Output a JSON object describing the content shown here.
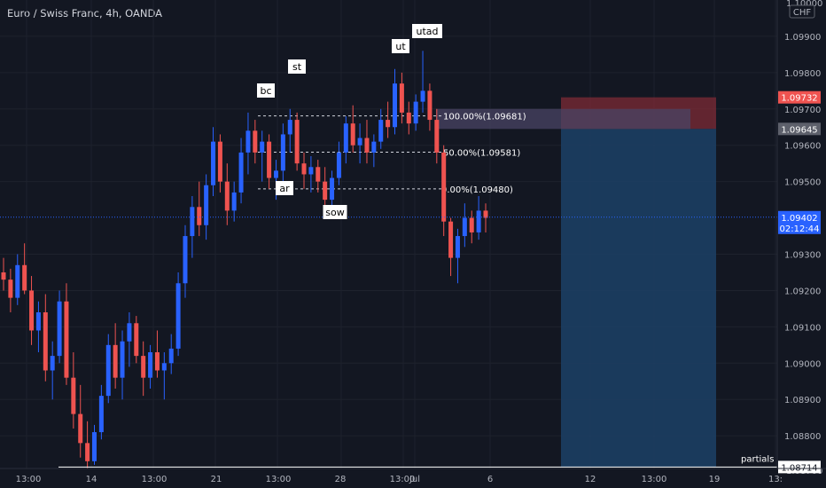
{
  "header": {
    "title": "Euro / Swiss Franc, 4h, OANDA"
  },
  "colors": {
    "background": "#131722",
    "grid": "#1e222d",
    "up": "#2962ff",
    "down": "#ef5350",
    "stop_zone": "#7d2b36",
    "target_zone": "#1c3e63",
    "entry_zone": "#4a4464"
  },
  "chart_data": {
    "type": "candlestick",
    "symbol": "Euro / Swiss Franc",
    "timeframe": "4h",
    "broker": "OANDA",
    "currency": "CHF",
    "ylim": [
      1.0871,
      1.1
    ],
    "y_ticks": [
      1.099,
      1.098,
      1.097,
      1.096,
      1.095,
      1.093,
      1.092,
      1.091,
      1.09,
      1.089,
      1.088
    ],
    "y_tick_labels": [
      "1.09900",
      "1.09800",
      "1.09700",
      "1.09600",
      "1.09500",
      "1.09300",
      "1.09200",
      "1.09100",
      "1.09000",
      "1.08900",
      "1.08800"
    ],
    "y_partial_labels": [
      "1.10000",
      "1.08700"
    ],
    "x_ticks": [
      "13:00",
      "14",
      "13:00",
      "21",
      "13:00",
      "28",
      "13:00",
      "Jul",
      "6",
      "12",
      "13:00",
      "19",
      "13:"
    ],
    "current_price": {
      "value": 1.09402,
      "label": "1.09402",
      "countdown": "02:12:44"
    },
    "price_labels": [
      {
        "label": "1.09732",
        "value": 1.09732,
        "color": "#ef5350"
      },
      {
        "label": "1.09645",
        "value": 1.09645,
        "color": "#5d606b"
      },
      {
        "label": "1.08714",
        "value": 1.08714,
        "color": "#ffffff"
      }
    ],
    "fibonacci": [
      {
        "label": "100.00%(1.09681)",
        "value": 1.09681
      },
      {
        "label": "50.00%(1.09581)",
        "value": 1.09581
      },
      {
        "label": "0.00%(1.09480)",
        "value": 1.0948
      }
    ],
    "annotations": [
      "bc",
      "st",
      "ar",
      "sow",
      "ut",
      "utad"
    ],
    "horizontal_line": {
      "label": "partials",
      "value": 1.08714
    },
    "position": {
      "entry": 1.09645,
      "stop": 1.09732,
      "target": 1.08714
    },
    "candles": [
      [
        1.0925,
        1.0929,
        1.092,
        1.0923
      ],
      [
        1.0923,
        1.0926,
        1.0914,
        1.0918
      ],
      [
        1.0918,
        1.093,
        1.0916,
        1.0927
      ],
      [
        1.0927,
        1.0933,
        1.0919,
        1.092
      ],
      [
        1.092,
        1.0924,
        1.0905,
        1.0909
      ],
      [
        1.0909,
        1.0917,
        1.0903,
        1.0914
      ],
      [
        1.0914,
        1.0919,
        1.0895,
        1.0898
      ],
      [
        1.0898,
        1.0906,
        1.089,
        1.0902
      ],
      [
        1.0902,
        1.092,
        1.09,
        1.0917
      ],
      [
        1.0917,
        1.0922,
        1.0894,
        1.0896
      ],
      [
        1.0896,
        1.0903,
        1.0882,
        1.0886
      ],
      [
        1.0886,
        1.0894,
        1.0874,
        1.0878
      ],
      [
        1.0878,
        1.0884,
        1.0871,
        1.0873
      ],
      [
        1.0873,
        1.0883,
        1.0872,
        1.0881
      ],
      [
        1.0881,
        1.0894,
        1.0879,
        1.0891
      ],
      [
        1.0891,
        1.0908,
        1.0889,
        1.0905
      ],
      [
        1.0905,
        1.0911,
        1.0893,
        1.0896
      ],
      [
        1.0896,
        1.0909,
        1.089,
        1.0906
      ],
      [
        1.0906,
        1.0914,
        1.0899,
        1.0911
      ],
      [
        1.0911,
        1.0913,
        1.09,
        1.0902
      ],
      [
        1.0902,
        1.0906,
        1.0891,
        1.0896
      ],
      [
        1.0896,
        1.0905,
        1.0893,
        1.0903
      ],
      [
        1.0903,
        1.0909,
        1.0896,
        1.0898
      ],
      [
        1.0898,
        1.0903,
        1.089,
        1.09
      ],
      [
        1.09,
        1.0908,
        1.0897,
        1.0904
      ],
      [
        1.0904,
        1.0925,
        1.0902,
        1.0922
      ],
      [
        1.0922,
        1.0938,
        1.0918,
        1.0935
      ],
      [
        1.0935,
        1.0946,
        1.0929,
        1.0943
      ],
      [
        1.0943,
        1.095,
        1.0935,
        1.0938
      ],
      [
        1.0938,
        1.0952,
        1.0934,
        1.0949
      ],
      [
        1.0949,
        1.0965,
        1.0946,
        1.0961
      ],
      [
        1.0961,
        1.0963,
        1.0947,
        1.095
      ],
      [
        1.095,
        1.0955,
        1.0938,
        1.0942
      ],
      [
        1.0942,
        1.095,
        1.0939,
        1.0947
      ],
      [
        1.0947,
        1.0962,
        1.0944,
        1.0958
      ],
      [
        1.0958,
        1.0969,
        1.0952,
        1.0964
      ],
      [
        1.0964,
        1.0967,
        1.0955,
        1.0958
      ],
      [
        1.0958,
        1.0964,
        1.095,
        1.0961
      ],
      [
        1.0961,
        1.0963,
        1.0948,
        1.0951
      ],
      [
        1.0951,
        1.0956,
        1.0945,
        1.0953
      ],
      [
        1.0953,
        1.0966,
        1.095,
        1.0963
      ],
      [
        1.0963,
        1.097,
        1.0958,
        1.0967
      ],
      [
        1.0967,
        1.0969,
        1.0953,
        1.0955
      ],
      [
        1.0955,
        1.0958,
        1.0948,
        1.0952
      ],
      [
        1.0952,
        1.0957,
        1.0947,
        1.0954
      ],
      [
        1.0954,
        1.0956,
        1.0947,
        1.095
      ],
      [
        1.095,
        1.0954,
        1.0942,
        1.0945
      ],
      [
        1.0945,
        1.0953,
        1.0943,
        1.0951
      ],
      [
        1.0951,
        1.0961,
        1.0949,
        1.0958
      ],
      [
        1.0958,
        1.0968,
        1.0955,
        1.0966
      ],
      [
        1.0966,
        1.0971,
        1.0958,
        1.096
      ],
      [
        1.096,
        1.0966,
        1.0955,
        1.0962
      ],
      [
        1.0962,
        1.0967,
        1.0955,
        1.0958
      ],
      [
        1.0958,
        1.0963,
        1.0954,
        1.0961
      ],
      [
        1.0961,
        1.097,
        1.0959,
        1.0967
      ],
      [
        1.0967,
        1.0972,
        1.0962,
        1.0965
      ],
      [
        1.0965,
        1.0981,
        1.0963,
        1.0977
      ],
      [
        1.0977,
        1.098,
        1.0966,
        1.0969
      ],
      [
        1.0969,
        1.0972,
        1.0963,
        1.0966
      ],
      [
        1.0966,
        1.0974,
        1.0964,
        1.0972
      ],
      [
        1.0972,
        1.0986,
        1.0969,
        1.0975
      ],
      [
        1.0975,
        1.0977,
        1.0964,
        1.0967
      ],
      [
        1.0967,
        1.097,
        1.0955,
        1.0958
      ],
      [
        1.0958,
        1.096,
        1.0935,
        1.0939
      ],
      [
        1.0939,
        1.094,
        1.0924,
        1.0929
      ],
      [
        1.0929,
        1.0937,
        1.0922,
        1.0935
      ],
      [
        1.0935,
        1.0944,
        1.0932,
        1.094
      ],
      [
        1.094,
        1.0942,
        1.0933,
        1.0936
      ],
      [
        1.0936,
        1.0946,
        1.0934,
        1.0942
      ],
      [
        1.0942,
        1.0944,
        1.0936,
        1.094
      ]
    ]
  }
}
